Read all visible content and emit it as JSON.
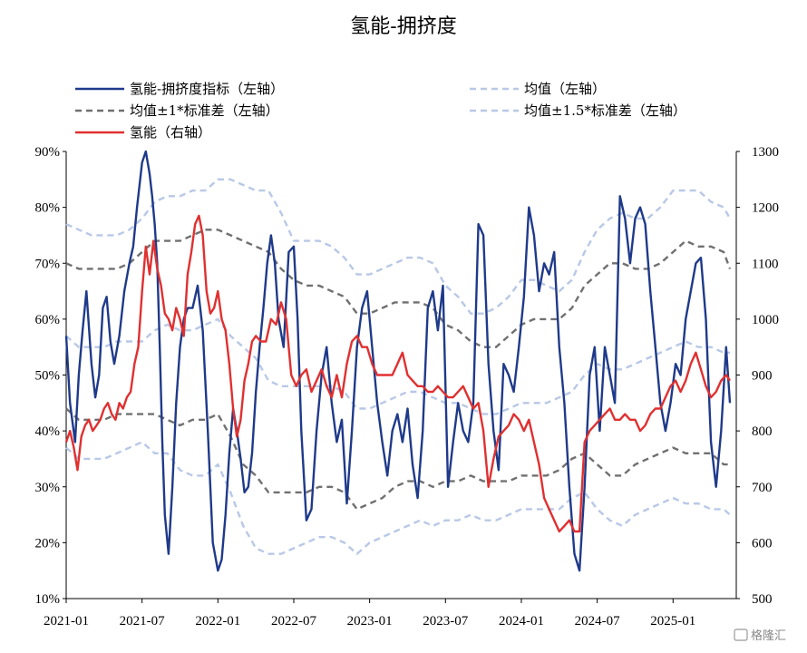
{
  "chart_data": {
    "type": "line",
    "title": "氢能-拥挤度",
    "left_axis": {
      "ylim": [
        0.1,
        0.9
      ],
      "ticks": [
        "10%",
        "20%",
        "30%",
        "40%",
        "50%",
        "60%",
        "70%",
        "80%",
        "90%"
      ]
    },
    "right_axis": {
      "ylim": [
        500,
        1300
      ],
      "ticks": [
        "500",
        "600",
        "700",
        "800",
        "900",
        "1000",
        "1100",
        "1200",
        "1300"
      ]
    },
    "x_ticks": [
      "2021-01",
      "2021-07",
      "2022-01",
      "2022-07",
      "2023-01",
      "2023-07",
      "2024-01",
      "2024-07",
      "2025-01"
    ],
    "x_range": [
      0,
      53
    ],
    "colors": {
      "crowding": "#1f3a8a",
      "mean": "#b8c8e6",
      "std1": "#707070",
      "std15": "#b8c8e6",
      "price": "#e03030"
    },
    "legend": [
      {
        "key": "crowding",
        "label": "氢能-拥挤度指标（左轴）"
      },
      {
        "key": "mean",
        "label": "均值（左轴）"
      },
      {
        "key": "std1",
        "label": "均值±1*标准差（左轴）"
      },
      {
        "key": "std15",
        "label": "均值±1.5*标准差（左轴）"
      },
      {
        "key": "price",
        "label": "氢能（右轴）"
      }
    ],
    "series": [
      {
        "name": "氢能-拥挤度指标（左轴）",
        "axis": "left",
        "style": "solid",
        "x": [
          0,
          0.3,
          0.7,
          1,
          1.3,
          1.6,
          2,
          2.3,
          2.6,
          2.9,
          3.2,
          3.5,
          3.8,
          4.2,
          4.6,
          5,
          5.3,
          5.6,
          6,
          6.3,
          6.6,
          6.8,
          7.0,
          7.2,
          7.4,
          7.6,
          7.8,
          8.1,
          8.4,
          8.7,
          9,
          9.3,
          9.6,
          10,
          10.4,
          10.8,
          11.2,
          11.6,
          12,
          12.3,
          12.6,
          12.9,
          13.2,
          13.5,
          13.8,
          14.1,
          14.4,
          14.7,
          15,
          15.3,
          15.6,
          15.9,
          16.2,
          16.5,
          16.8,
          17.2,
          17.6,
          18,
          18.3,
          18.6,
          19,
          19.4,
          19.8,
          20.2,
          20.6,
          21,
          21.4,
          21.8,
          22.2,
          22.6,
          23,
          23.4,
          23.8,
          24.2,
          24.6,
          25,
          25.4,
          25.8,
          26.2,
          26.6,
          27,
          27.4,
          27.8,
          28.2,
          28.6,
          29,
          29.4,
          29.8,
          30.2,
          30.6,
          31,
          31.4,
          31.8,
          32.2,
          32.6,
          33,
          33.4,
          33.8,
          34.2,
          34.6,
          35,
          35.4,
          35.8,
          36.2,
          36.6,
          37,
          37.4,
          37.8,
          38.2,
          38.6,
          39,
          39.4,
          39.8,
          40.2,
          40.6,
          41,
          41.4,
          41.8,
          42.2,
          42.6,
          43,
          43.4,
          43.8,
          44.2,
          44.6,
          45,
          45.4,
          45.8,
          46.2,
          46.6,
          47,
          47.4,
          47.8,
          48.2,
          48.6,
          49,
          49.4,
          49.8,
          50.2,
          50.6,
          51,
          51.4,
          51.8,
          52.2,
          52.5
        ],
        "values": [
          0.57,
          0.45,
          0.38,
          0.5,
          0.58,
          0.65,
          0.52,
          0.46,
          0.5,
          0.62,
          0.64,
          0.56,
          0.52,
          0.57,
          0.65,
          0.7,
          0.73,
          0.8,
          0.88,
          0.9,
          0.86,
          0.82,
          0.77,
          0.7,
          0.55,
          0.38,
          0.25,
          0.18,
          0.3,
          0.45,
          0.55,
          0.6,
          0.62,
          0.62,
          0.66,
          0.58,
          0.4,
          0.2,
          0.15,
          0.17,
          0.25,
          0.36,
          0.44,
          0.4,
          0.35,
          0.29,
          0.3,
          0.36,
          0.47,
          0.55,
          0.62,
          0.7,
          0.75,
          0.7,
          0.6,
          0.55,
          0.72,
          0.73,
          0.6,
          0.4,
          0.24,
          0.26,
          0.4,
          0.5,
          0.55,
          0.45,
          0.38,
          0.42,
          0.27,
          0.4,
          0.55,
          0.62,
          0.65,
          0.55,
          0.45,
          0.38,
          0.32,
          0.4,
          0.43,
          0.38,
          0.44,
          0.34,
          0.28,
          0.4,
          0.62,
          0.65,
          0.58,
          0.66,
          0.3,
          0.38,
          0.45,
          0.4,
          0.38,
          0.45,
          0.77,
          0.75,
          0.52,
          0.4,
          0.33,
          0.52,
          0.5,
          0.47,
          0.55,
          0.64,
          0.8,
          0.75,
          0.65,
          0.7,
          0.68,
          0.72,
          0.55,
          0.45,
          0.3,
          0.18,
          0.15,
          0.3,
          0.5,
          0.55,
          0.4,
          0.55,
          0.5,
          0.45,
          0.82,
          0.78,
          0.7,
          0.78,
          0.8,
          0.77,
          0.65,
          0.55,
          0.45,
          0.4,
          0.45,
          0.52,
          0.5,
          0.6,
          0.65,
          0.7,
          0.71,
          0.6,
          0.38,
          0.3,
          0.4,
          0.55,
          0.45
        ]
      },
      {
        "name": "均值（左轴）",
        "axis": "left",
        "style": "dashed",
        "x": [
          0,
          1,
          2,
          3,
          4,
          5,
          6,
          7,
          8,
          9,
          10,
          11,
          12,
          13,
          14,
          15,
          16,
          17,
          18,
          19,
          20,
          21,
          22,
          23,
          24,
          25,
          26,
          27,
          28,
          29,
          30,
          31,
          32,
          33,
          34,
          35,
          36,
          37,
          38,
          39,
          40,
          41,
          42,
          43,
          44,
          45,
          46,
          47,
          48,
          49,
          50,
          51,
          52,
          52.5
        ],
        "values": [
          0.57,
          0.55,
          0.55,
          0.55,
          0.56,
          0.56,
          0.56,
          0.58,
          0.59,
          0.58,
          0.58,
          0.59,
          0.6,
          0.57,
          0.55,
          0.53,
          0.49,
          0.48,
          0.48,
          0.48,
          0.48,
          0.48,
          0.47,
          0.44,
          0.44,
          0.45,
          0.46,
          0.47,
          0.47,
          0.46,
          0.45,
          0.45,
          0.44,
          0.43,
          0.43,
          0.44,
          0.45,
          0.45,
          0.45,
          0.46,
          0.47,
          0.5,
          0.52,
          0.51,
          0.51,
          0.52,
          0.53,
          0.54,
          0.55,
          0.56,
          0.55,
          0.55,
          0.54,
          0.54
        ]
      },
      {
        "name": "均值±1*标准差（左轴）",
        "axis": "left",
        "style": "dashed",
        "x": [
          0,
          1,
          2,
          3,
          4,
          5,
          6,
          7,
          8,
          9,
          10,
          11,
          12,
          13,
          14,
          15,
          16,
          17,
          18,
          19,
          20,
          21,
          22,
          23,
          24,
          25,
          26,
          27,
          28,
          29,
          30,
          31,
          32,
          33,
          34,
          35,
          36,
          37,
          38,
          39,
          40,
          41,
          42,
          43,
          44,
          45,
          46,
          47,
          48,
          49,
          50,
          51,
          52,
          52.5
        ],
        "values": [
          0.7,
          0.69,
          0.69,
          0.69,
          0.69,
          0.7,
          0.72,
          0.74,
          0.74,
          0.74,
          0.75,
          0.76,
          0.76,
          0.75,
          0.74,
          0.73,
          0.72,
          0.69,
          0.67,
          0.66,
          0.66,
          0.65,
          0.64,
          0.61,
          0.61,
          0.62,
          0.63,
          0.63,
          0.63,
          0.62,
          0.59,
          0.58,
          0.56,
          0.55,
          0.55,
          0.57,
          0.59,
          0.6,
          0.6,
          0.6,
          0.62,
          0.66,
          0.68,
          0.7,
          0.7,
          0.69,
          0.69,
          0.7,
          0.72,
          0.74,
          0.73,
          0.73,
          0.72,
          0.69
        ]
      },
      {
        "name": "均值±1*标准差（左轴）",
        "axis": "left",
        "style": "dashed",
        "x": [
          0,
          1,
          2,
          3,
          4,
          5,
          6,
          7,
          8,
          9,
          10,
          11,
          12,
          13,
          14,
          15,
          16,
          17,
          18,
          19,
          20,
          21,
          22,
          23,
          24,
          25,
          26,
          27,
          28,
          29,
          30,
          31,
          32,
          33,
          34,
          35,
          36,
          37,
          38,
          39,
          40,
          41,
          42,
          43,
          44,
          45,
          46,
          47,
          48,
          49,
          50,
          51,
          52,
          52.5
        ],
        "values": [
          0.44,
          0.42,
          0.42,
          0.42,
          0.43,
          0.43,
          0.43,
          0.43,
          0.42,
          0.41,
          0.42,
          0.42,
          0.43,
          0.39,
          0.34,
          0.32,
          0.29,
          0.29,
          0.29,
          0.29,
          0.3,
          0.3,
          0.29,
          0.26,
          0.27,
          0.28,
          0.3,
          0.31,
          0.31,
          0.3,
          0.31,
          0.31,
          0.32,
          0.31,
          0.31,
          0.31,
          0.32,
          0.32,
          0.32,
          0.33,
          0.35,
          0.36,
          0.34,
          0.32,
          0.32,
          0.34,
          0.35,
          0.36,
          0.37,
          0.36,
          0.36,
          0.36,
          0.34,
          0.34
        ]
      },
      {
        "name": "均值±1.5*标准差（左轴）",
        "axis": "left",
        "style": "dashed",
        "x": [
          0,
          1,
          2,
          3,
          4,
          5,
          6,
          7,
          8,
          9,
          10,
          11,
          12,
          13,
          14,
          15,
          16,
          17,
          18,
          19,
          20,
          21,
          22,
          23,
          24,
          25,
          26,
          27,
          28,
          29,
          30,
          31,
          32,
          33,
          34,
          35,
          36,
          37,
          38,
          39,
          40,
          41,
          42,
          43,
          44,
          45,
          46,
          47,
          48,
          49,
          50,
          51,
          52,
          52.5
        ],
        "values": [
          0.77,
          0.76,
          0.75,
          0.75,
          0.75,
          0.76,
          0.78,
          0.81,
          0.82,
          0.82,
          0.83,
          0.83,
          0.85,
          0.85,
          0.84,
          0.83,
          0.83,
          0.79,
          0.74,
          0.74,
          0.74,
          0.73,
          0.71,
          0.68,
          0.68,
          0.69,
          0.7,
          0.71,
          0.71,
          0.7,
          0.66,
          0.64,
          0.61,
          0.61,
          0.62,
          0.64,
          0.67,
          0.67,
          0.66,
          0.65,
          0.67,
          0.72,
          0.76,
          0.78,
          0.79,
          0.78,
          0.78,
          0.8,
          0.83,
          0.83,
          0.83,
          0.81,
          0.8,
          0.78
        ]
      },
      {
        "name": "均值±1.5*标准差（左轴）",
        "axis": "left",
        "style": "dashed",
        "x": [
          0,
          1,
          2,
          3,
          4,
          5,
          6,
          7,
          8,
          9,
          10,
          11,
          12,
          13,
          14,
          15,
          16,
          17,
          18,
          19,
          20,
          21,
          22,
          23,
          24,
          25,
          26,
          27,
          28,
          29,
          30,
          31,
          32,
          33,
          34,
          35,
          36,
          37,
          38,
          39,
          40,
          41,
          42,
          43,
          44,
          45,
          46,
          47,
          48,
          49,
          50,
          51,
          52,
          52.5
        ],
        "values": [
          0.37,
          0.35,
          0.35,
          0.35,
          0.36,
          0.37,
          0.38,
          0.36,
          0.36,
          0.33,
          0.32,
          0.32,
          0.34,
          0.29,
          0.23,
          0.19,
          0.18,
          0.18,
          0.19,
          0.2,
          0.21,
          0.21,
          0.2,
          0.18,
          0.2,
          0.21,
          0.22,
          0.23,
          0.24,
          0.23,
          0.24,
          0.24,
          0.25,
          0.24,
          0.24,
          0.25,
          0.26,
          0.26,
          0.26,
          0.26,
          0.28,
          0.29,
          0.26,
          0.24,
          0.23,
          0.25,
          0.26,
          0.27,
          0.28,
          0.27,
          0.27,
          0.26,
          0.26,
          0.25
        ]
      },
      {
        "name": "氢能（右轴）",
        "axis": "right",
        "style": "solid",
        "x": [
          0,
          0.3,
          0.6,
          0.9,
          1.2,
          1.5,
          1.8,
          2.1,
          2.4,
          2.7,
          3,
          3.3,
          3.6,
          3.9,
          4.2,
          4.5,
          4.8,
          5.1,
          5.4,
          5.7,
          6,
          6.3,
          6.6,
          6.9,
          7.2,
          7.5,
          7.8,
          8.1,
          8.4,
          8.7,
          9,
          9.3,
          9.6,
          9.9,
          10.2,
          10.5,
          10.8,
          11.1,
          11.4,
          11.7,
          12,
          12.3,
          12.6,
          12.9,
          13.2,
          13.5,
          13.8,
          14.1,
          14.4,
          14.7,
          15,
          15.4,
          15.8,
          16.2,
          16.6,
          17,
          17.4,
          17.8,
          18.2,
          18.6,
          19,
          19.4,
          19.8,
          20.2,
          20.6,
          21,
          21.4,
          21.8,
          22.2,
          22.6,
          23,
          23.4,
          23.8,
          24.2,
          24.6,
          25,
          25.4,
          25.8,
          26.2,
          26.6,
          27,
          27.4,
          27.8,
          28.2,
          28.6,
          29,
          29.4,
          29.8,
          30.2,
          30.6,
          31,
          31.4,
          31.8,
          32.2,
          32.6,
          33,
          33.4,
          33.8,
          34.2,
          34.6,
          35,
          35.4,
          35.8,
          36.2,
          36.6,
          37,
          37.4,
          37.8,
          38.2,
          38.6,
          39,
          39.4,
          39.8,
          40.2,
          40.6,
          41,
          41.4,
          41.8,
          42.2,
          42.6,
          43,
          43.4,
          43.8,
          44.2,
          44.6,
          45,
          45.4,
          45.8,
          46.2,
          46.6,
          47,
          47.4,
          47.8,
          48.2,
          48.6,
          49,
          49.4,
          49.8,
          50.2,
          50.6,
          51,
          51.4,
          51.8,
          52.2,
          52.5
        ],
        "values": [
          780,
          800,
          770,
          730,
          790,
          810,
          820,
          800,
          810,
          820,
          840,
          850,
          830,
          820,
          850,
          840,
          860,
          870,
          920,
          950,
          1050,
          1130,
          1080,
          1140,
          1090,
          1060,
          1010,
          1000,
          980,
          1020,
          1000,
          970,
          1080,
          1120,
          1170,
          1185,
          1150,
          1050,
          1010,
          1020,
          1050,
          1000,
          980,
          920,
          840,
          790,
          820,
          890,
          920,
          960,
          970,
          960,
          960,
          1000,
          990,
          1030,
          1000,
          900,
          880,
          900,
          910,
          870,
          890,
          910,
          880,
          860,
          900,
          860,
          920,
          960,
          970,
          950,
          950,
          920,
          900,
          900,
          900,
          900,
          920,
          940,
          900,
          890,
          880,
          880,
          870,
          870,
          880,
          870,
          860,
          860,
          870,
          880,
          860,
          840,
          850,
          800,
          700,
          750,
          790,
          800,
          810,
          830,
          820,
          800,
          820,
          780,
          740,
          680,
          660,
          640,
          620,
          630,
          640,
          620,
          620,
          780,
          800,
          810,
          820,
          830,
          840,
          820,
          820,
          830,
          820,
          820,
          800,
          810,
          830,
          840,
          840,
          860,
          880,
          890,
          870,
          890,
          920,
          940,
          910,
          880,
          860,
          870,
          890,
          900,
          890
        ]
      }
    ]
  },
  "watermark": "格隆汇"
}
